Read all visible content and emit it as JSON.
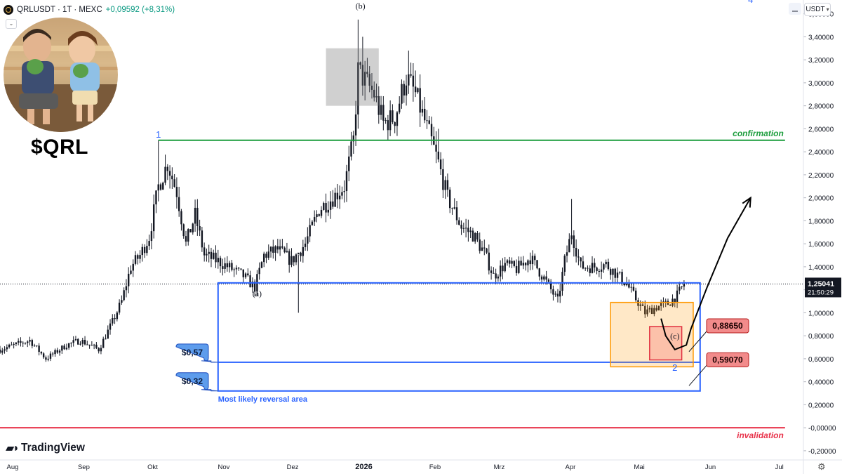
{
  "header": {
    "symbol": "QRLUSDT · 1T · MEXC",
    "change": "+0,09592 (+8,31%)",
    "currency": "USDT",
    "collapse_icon": "chevron-down-icon",
    "settings_icon": "gear-icon"
  },
  "branding": {
    "logo_text": "TradingView"
  },
  "overlay": {
    "ticker_label": "$QRL"
  },
  "chart_data": {
    "type": "candlestick",
    "ylim": [
      -0.28,
      3.72
    ],
    "y_ticks": [
      "3,60000",
      "3,40000",
      "3,20000",
      "3,00000",
      "2,80000",
      "2,60000",
      "2,40000",
      "2,20000",
      "2,00000",
      "1,80000",
      "1,60000",
      "1,40000",
      "1,20000",
      "1,00000",
      "0,80000",
      "0,60000",
      "0,40000",
      "0,20000",
      "-0,00000",
      "-0,20000"
    ],
    "x_ticks": [
      "Aug",
      "Sep",
      "Okt",
      "Nov",
      "Dez",
      "2026",
      "Feb",
      "Mrz",
      "Apr",
      "Mai",
      "Jun",
      "Jul"
    ],
    "x_tick_pos": [
      0.5,
      31.5,
      61.5,
      92.5,
      122.5,
      153.5,
      184.5,
      212.5,
      243.5,
      273.5,
      304.5,
      334.5
    ],
    "x_range": [
      -5,
      345
    ],
    "current_price": 1.25041,
    "current_price_label": "1,25041",
    "countdown_label": "21:50:29",
    "close_path": [
      [
        -5,
        0.68
      ],
      [
        8,
        0.76
      ],
      [
        15,
        0.6
      ],
      [
        24,
        0.72
      ],
      [
        30,
        0.76
      ],
      [
        38,
        0.68
      ],
      [
        44,
        0.92
      ],
      [
        48,
        1.1
      ],
      [
        52,
        1.4
      ],
      [
        56,
        1.5
      ],
      [
        60,
        1.66
      ],
      [
        64,
        2.1
      ],
      [
        68,
        2.3
      ],
      [
        72,
        2.05
      ],
      [
        76,
        1.6
      ],
      [
        80,
        1.85
      ],
      [
        84,
        1.5
      ],
      [
        90,
        1.45
      ],
      [
        96,
        1.38
      ],
      [
        101,
        1.32
      ],
      [
        106,
        1.22
      ],
      [
        110,
        1.5
      ],
      [
        116,
        1.55
      ],
      [
        122,
        1.45
      ],
      [
        128,
        1.6
      ],
      [
        134,
        1.9
      ],
      [
        140,
        2.0
      ],
      [
        145,
        2.1
      ],
      [
        149,
        2.5
      ],
      [
        151,
        3.1
      ],
      [
        153,
        3.05
      ],
      [
        158,
        2.9
      ],
      [
        162,
        2.65
      ],
      [
        167,
        2.7
      ],
      [
        172,
        3.05
      ],
      [
        176,
        2.9
      ],
      [
        182,
        2.55
      ],
      [
        186,
        2.3
      ],
      [
        190,
        2.0
      ],
      [
        196,
        1.75
      ],
      [
        201,
        1.68
      ],
      [
        206,
        1.52
      ],
      [
        210,
        1.32
      ],
      [
        215,
        1.42
      ],
      [
        220,
        1.38
      ],
      [
        226,
        1.48
      ],
      [
        232,
        1.3
      ],
      [
        238,
        1.1
      ],
      [
        241,
        1.45
      ],
      [
        244,
        1.7
      ],
      [
        248,
        1.4
      ],
      [
        254,
        1.4
      ],
      [
        259,
        1.42
      ],
      [
        264,
        1.33
      ],
      [
        268,
        1.25
      ],
      [
        272,
        1.12
      ],
      [
        276,
        1.0
      ],
      [
        281,
        1.05
      ],
      [
        286,
        1.08
      ],
      [
        290,
        1.15
      ],
      [
        293,
        1.25
      ]
    ],
    "series": [
      {
        "name": "",
        "note": "daily candles"
      }
    ],
    "annotations": {
      "wave_labels": [
        {
          "text": "1",
          "x": 64,
          "y": 2.5,
          "color": "#2962ff"
        },
        {
          "text": "(b)",
          "x": 152,
          "y": 3.62,
          "color": "#131722"
        },
        {
          "text": "(a)",
          "x": 107,
          "y": 1.12,
          "color": "#131722"
        },
        {
          "text": "(c)",
          "x": 289,
          "y": 0.75,
          "color": "#131722"
        },
        {
          "text": "2",
          "x": 289,
          "y": 0.47,
          "color": "#2962ff"
        },
        {
          "text": "4",
          "x": 322,
          "y": 3.67,
          "color": "#2962ff"
        }
      ],
      "hlines": [
        {
          "label": "confirmation",
          "price": 2.5,
          "color": "#1e9e3e",
          "x0": 64,
          "x1": 337
        },
        {
          "label": "invalidation",
          "price": 0.0,
          "color": "#e8324a",
          "x0": -5,
          "x1": 337
        }
      ],
      "reversal_area": {
        "label": "Most likely reversal area",
        "x0": 90,
        "x1": 300,
        "y_top": 1.26,
        "y_mid": 0.57,
        "y_bottom": 0.32,
        "color": "#2962ff"
      },
      "level_labels": [
        {
          "text": "$0,57",
          "price": 0.57
        },
        {
          "text": "$0,32",
          "price": 0.32
        }
      ],
      "target_boxes": [
        {
          "kind": "orange",
          "x0": 261,
          "x1": 297,
          "y_top": 1.09,
          "y_bottom": 0.53
        },
        {
          "kind": "red",
          "x0": 278,
          "x1": 292,
          "y_top": 0.88,
          "y_bottom": 0.59
        },
        {
          "kind": "grey",
          "x0": 137,
          "x1": 160,
          "y_top": 3.3,
          "y_bottom": 2.8
        }
      ],
      "price_tags": [
        {
          "text": "0,88650",
          "price": 0.8865
        },
        {
          "text": "0,59070",
          "price": 0.5907
        }
      ],
      "projected_path": [
        [
          283,
          0.95
        ],
        [
          285,
          0.8
        ],
        [
          289,
          0.68
        ],
        [
          294,
          0.72
        ],
        [
          296,
          0.86
        ],
        [
          303,
          1.22
        ],
        [
          312,
          1.65
        ],
        [
          322,
          2.0
        ]
      ]
    }
  }
}
